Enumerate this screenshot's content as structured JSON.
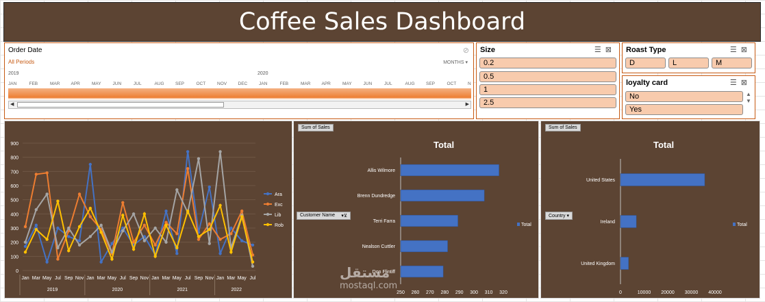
{
  "dashboard": {
    "title": "Coffee Sales Dashboard"
  },
  "timeline": {
    "header": "Order Date",
    "period": "All Periods",
    "level": "MONTHS",
    "years": [
      "2019",
      "2020"
    ],
    "months": [
      "JAN",
      "FEB",
      "MAR",
      "APR",
      "MAY",
      "JUN",
      "JUL",
      "AUG",
      "SEP",
      "OCT",
      "NOV",
      "DEC",
      "JAN",
      "FEB",
      "MAR",
      "APR",
      "MAY",
      "JUN",
      "JUL",
      "AUG",
      "SEP",
      "OCT",
      "N"
    ]
  },
  "slicers": {
    "size": {
      "header": "Size",
      "items": [
        "0.2",
        "0.5",
        "1",
        "2.5"
      ]
    },
    "roast": {
      "header": "Roast Type",
      "items": [
        "D",
        "L",
        "M"
      ]
    },
    "loyalty": {
      "header": "loyalty card",
      "items": [
        "No",
        "Yes"
      ]
    }
  },
  "colors": {
    "panel": "#5c4433",
    "accent": "#c65911",
    "chip": "#f8cbad",
    "bar": "#4472c4"
  },
  "icons": [
    "multi-select-icon",
    "clear-filter-icon",
    "scroll-up-icon",
    "scroll-down-icon",
    "filter-dropdown-icon"
  ],
  "chart_data": [
    {
      "type": "line",
      "title": "",
      "x": [
        "Jan",
        "Mar",
        "May",
        "Jul",
        "Sep",
        "Nov",
        "Jan",
        "Mar",
        "May",
        "Jul",
        "Sep",
        "Nov",
        "Jan",
        "Mar",
        "May",
        "Jul",
        "Sep",
        "Nov",
        "Jan",
        "Mar",
        "May",
        "Jul"
      ],
      "x_groups": [
        {
          "label": "2019",
          "start": 0,
          "end": 5
        },
        {
          "label": "2020",
          "start": 6,
          "end": 11
        },
        {
          "label": "2021",
          "start": 12,
          "end": 17
        },
        {
          "label": "2022",
          "start": 18,
          "end": 21
        }
      ],
      "y_ticks": [
        "0",
        "100",
        "200",
        "300",
        "400",
        "500",
        "600",
        "700",
        "800",
        "900"
      ],
      "ylim": [
        0,
        900
      ],
      "legend_position": "right",
      "grid": true,
      "series": [
        {
          "name": "Ara",
          "color": "#4472c4",
          "values": [
            170,
            320,
            60,
            300,
            240,
            210,
            750,
            60,
            190,
            300,
            180,
            240,
            110,
            420,
            120,
            840,
            270,
            590,
            120,
            300,
            210,
            180
          ]
        },
        {
          "name": "Exc",
          "color": "#ed7d31",
          "values": [
            310,
            680,
            690,
            80,
            280,
            540,
            380,
            290,
            120,
            480,
            200,
            320,
            180,
            340,
            260,
            720,
            220,
            330,
            220,
            260,
            420,
            110
          ]
        },
        {
          "name": "Lib",
          "color": "#a5a5a5",
          "values": [
            200,
            430,
            540,
            160,
            300,
            180,
            240,
            320,
            130,
            280,
            400,
            210,
            300,
            200,
            570,
            410,
            790,
            190,
            840,
            160,
            390,
            30
          ]
        },
        {
          "name": "Rob",
          "color": "#ffc000",
          "values": [
            130,
            290,
            220,
            490,
            140,
            310,
            440,
            270,
            80,
            390,
            150,
            400,
            100,
            320,
            160,
            420,
            240,
            290,
            460,
            130,
            380,
            60
          ]
        }
      ]
    },
    {
      "type": "bar",
      "title": "Total",
      "pivot_field": "Sum of Sales",
      "row_field": "Customer Name",
      "categories": [
        "Allis Wilmore",
        "Brenn Dundredge",
        "Terri Farra",
        "Nealson Cuttler",
        "Don Flintiff"
      ],
      "values": [
        317,
        307,
        289,
        282,
        279
      ],
      "x_ticks": [
        "250",
        "260",
        "270",
        "280",
        "290",
        "300",
        "310",
        "320"
      ],
      "xlim": [
        250,
        320
      ],
      "legend": "Total"
    },
    {
      "type": "bar",
      "title": "Total",
      "pivot_field": "Sum of Sales",
      "row_field": "Country",
      "categories": [
        "United States",
        "Ireland",
        "United Kingdom"
      ],
      "values": [
        35639,
        6697,
        3390
      ],
      "x_ticks": [
        "0",
        "10000",
        "20000",
        "30000",
        "40000"
      ],
      "xlim": [
        0,
        40000
      ],
      "legend": "Total"
    }
  ],
  "watermark": {
    "logo": "مستقل",
    "text": "mostaql.com"
  }
}
